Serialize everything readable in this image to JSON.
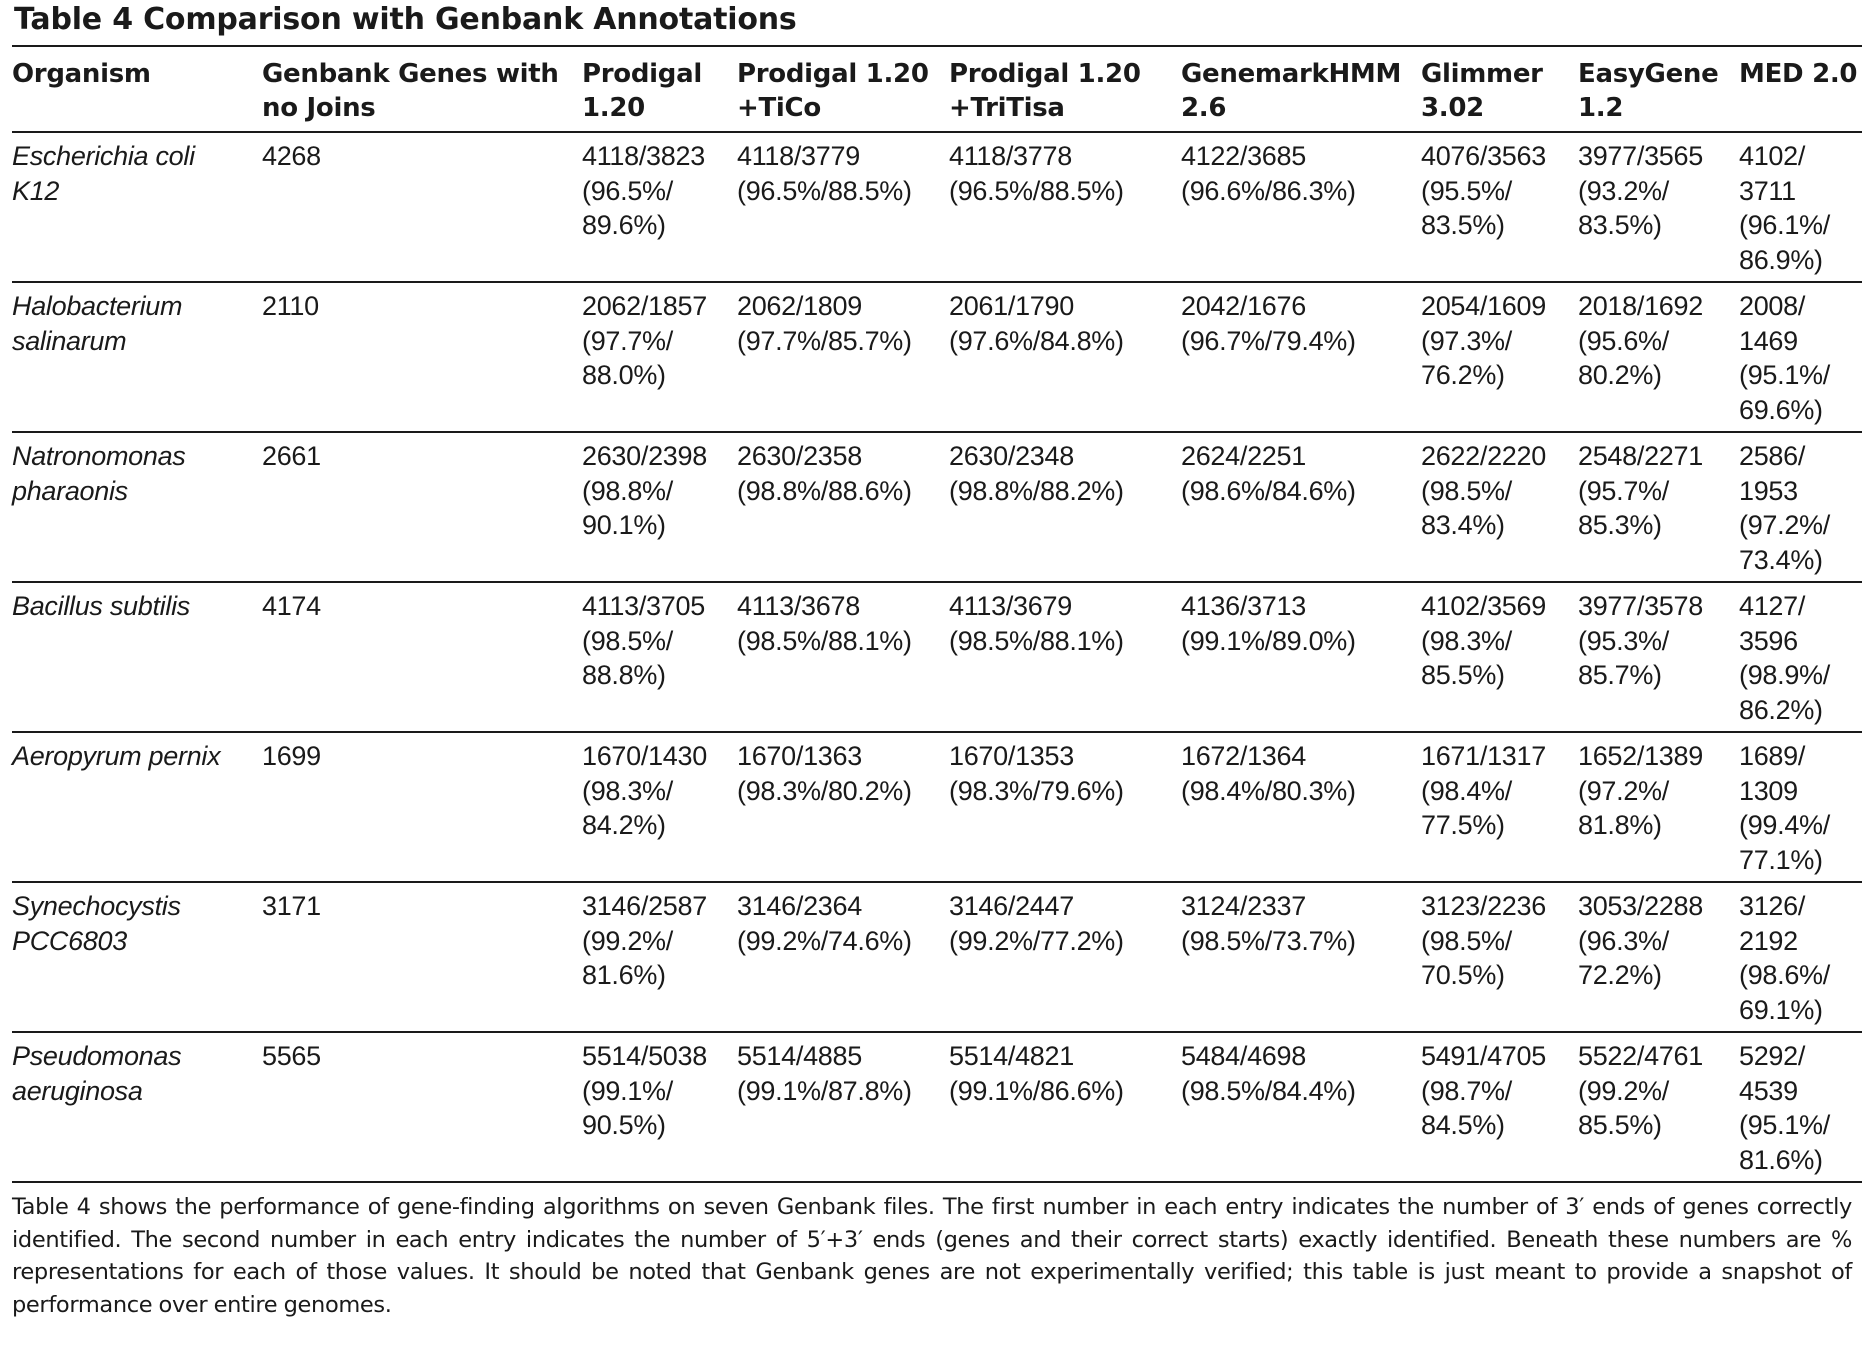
{
  "title": "Table 4 Comparison with Genbank Annotations",
  "columns": [
    [
      "Organism"
    ],
    [
      "Genbank Genes with",
      "no Joins"
    ],
    [
      "Prodigal",
      "1.20"
    ],
    [
      "Prodigal 1.20",
      "+TiCo"
    ],
    [
      "Prodigal 1.20",
      "+TriTisa"
    ],
    [
      "GenemarkHMM",
      "2.6"
    ],
    [
      "Glimmer",
      "3.02"
    ],
    [
      "EasyGene",
      "1.2"
    ],
    [
      "MED 2.0"
    ]
  ],
  "rows": [
    {
      "organism": [
        "Escherichia coli",
        "K12"
      ],
      "genbank": "4268",
      "values": [
        [
          "4118/3823",
          "(96.5%/",
          "89.6%)"
        ],
        [
          "4118/3779",
          "(96.5%/88.5%)"
        ],
        [
          "4118/3778",
          "(96.5%/88.5%)"
        ],
        [
          "4122/3685",
          "(96.6%/86.3%)"
        ],
        [
          "4076/3563",
          "(95.5%/",
          "83.5%)"
        ],
        [
          "3977/3565",
          "(93.2%/",
          "83.5%)"
        ],
        [
          "4102/",
          "3711",
          "(96.1%/",
          "86.9%)"
        ]
      ]
    },
    {
      "organism": [
        "Halobacterium",
        "salinarum"
      ],
      "genbank": "2110",
      "values": [
        [
          "2062/1857",
          "(97.7%/",
          "88.0%)"
        ],
        [
          "2062/1809",
          "(97.7%/85.7%)"
        ],
        [
          "2061/1790",
          "(97.6%/84.8%)"
        ],
        [
          "2042/1676",
          "(96.7%/79.4%)"
        ],
        [
          "2054/1609",
          "(97.3%/",
          "76.2%)"
        ],
        [
          "2018/1692",
          "(95.6%/",
          "80.2%)"
        ],
        [
          "2008/",
          "1469",
          "(95.1%/",
          "69.6%)"
        ]
      ]
    },
    {
      "organism": [
        "Natronomonas",
        "pharaonis"
      ],
      "genbank": "2661",
      "values": [
        [
          "2630/2398",
          "(98.8%/",
          "90.1%)"
        ],
        [
          "2630/2358",
          "(98.8%/88.6%)"
        ],
        [
          "2630/2348",
          "(98.8%/88.2%)"
        ],
        [
          "2624/2251",
          "(98.6%/84.6%)"
        ],
        [
          "2622/2220",
          "(98.5%/",
          "83.4%)"
        ],
        [
          "2548/2271",
          "(95.7%/",
          "85.3%)"
        ],
        [
          "2586/",
          "1953",
          "(97.2%/",
          "73.4%)"
        ]
      ]
    },
    {
      "organism": [
        "Bacillus subtilis"
      ],
      "genbank": "4174",
      "values": [
        [
          "4113/3705",
          "(98.5%/",
          "88.8%)"
        ],
        [
          "4113/3678",
          "(98.5%/88.1%)"
        ],
        [
          "4113/3679",
          "(98.5%/88.1%)"
        ],
        [
          "4136/3713",
          "(99.1%/89.0%)"
        ],
        [
          "4102/3569",
          "(98.3%/",
          "85.5%)"
        ],
        [
          "3977/3578",
          "(95.3%/",
          "85.7%)"
        ],
        [
          "4127/",
          "3596",
          "(98.9%/",
          "86.2%)"
        ]
      ]
    },
    {
      "organism": [
        "Aeropyrum pernix"
      ],
      "genbank": "1699",
      "values": [
        [
          "1670/1430",
          "(98.3%/",
          "84.2%)"
        ],
        [
          "1670/1363",
          "(98.3%/80.2%)"
        ],
        [
          "1670/1353",
          "(98.3%/79.6%)"
        ],
        [
          "1672/1364",
          "(98.4%/80.3%)"
        ],
        [
          "1671/1317",
          "(98.4%/",
          "77.5%)"
        ],
        [
          "1652/1389",
          "(97.2%/",
          "81.8%)"
        ],
        [
          "1689/",
          "1309",
          "(99.4%/",
          "77.1%)"
        ]
      ]
    },
    {
      "organism": [
        "Synechocystis",
        "PCC6803"
      ],
      "genbank": "3171",
      "values": [
        [
          "3146/2587",
          "(99.2%/",
          "81.6%)"
        ],
        [
          "3146/2364",
          "(99.2%/74.6%)"
        ],
        [
          "3146/2447",
          "(99.2%/77.2%)"
        ],
        [
          "3124/2337",
          "(98.5%/73.7%)"
        ],
        [
          "3123/2236",
          "(98.5%/",
          "70.5%)"
        ],
        [
          "3053/2288",
          "(96.3%/",
          "72.2%)"
        ],
        [
          "3126/",
          "2192",
          "(98.6%/",
          "69.1%)"
        ]
      ]
    },
    {
      "organism": [
        "Pseudomonas",
        "aeruginosa"
      ],
      "genbank": "5565",
      "values": [
        [
          "5514/5038",
          "(99.1%/",
          "90.5%)"
        ],
        [
          "5514/4885",
          "(99.1%/87.8%)"
        ],
        [
          "5514/4821",
          "(99.1%/86.6%)"
        ],
        [
          "5484/4698",
          "(98.5%/84.4%)"
        ],
        [
          "5491/4705",
          "(98.7%/",
          "84.5%)"
        ],
        [
          "5522/4761",
          "(99.2%/",
          "85.5%)"
        ],
        [
          "5292/",
          "4539",
          "(95.1%/",
          "81.6%)"
        ]
      ]
    }
  ],
  "footnote": "Table 4 shows the performance of gene-finding algorithms on seven Genbank files. The first number in each entry indicates the number of 3′ ends of genes correctly identified. The second number in each entry indicates the number of 5′+3′ ends (genes and their correct starts) exactly identified. Beneath these numbers are % representations for each of those values. It should be noted that Genbank genes are not experimentally verified; this table is just meant to provide a snapshot of performance over entire genomes."
}
